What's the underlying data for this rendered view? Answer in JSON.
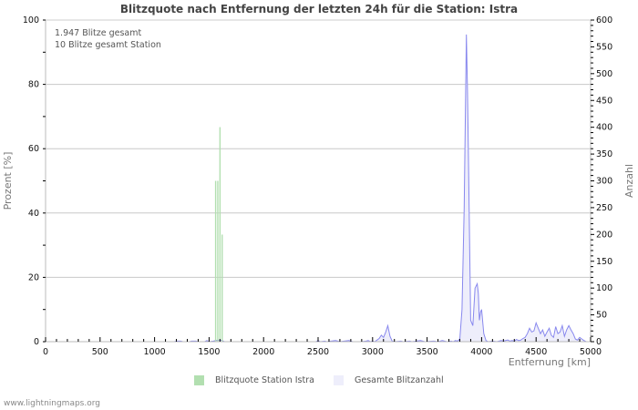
{
  "header": {
    "title": "Blitzquote nach Entfernung der letzten 24h für die Station: Istra"
  },
  "info": {
    "line1": "1.947 Blitze gesamt",
    "line2": "10 Blitze gesamt Station"
  },
  "legend": {
    "item1": "Blitzquote Station Istra",
    "item2": "Gesamte Blitzanzahl"
  },
  "footer": {
    "text": "www.lightningmaps.org"
  },
  "colors": {
    "station_bar": "#b2dfb0",
    "total_line": "#8888ee",
    "total_fill": "#eeeefb",
    "grid": "#c8c8c8"
  },
  "chart_data": {
    "type": "bar+area",
    "title": "Blitzquote nach Entfernung der letzten 24h für die Station: Istra",
    "xlabel": "Entfernung   [km]",
    "ylabel_left": "Prozent   [%]",
    "ylabel_right": "Anzahl",
    "xlim": [
      0,
      5000
    ],
    "ylim_left": [
      0,
      100
    ],
    "ylim_right": [
      0,
      600
    ],
    "x_ticks": [
      0,
      500,
      1000,
      1500,
      2000,
      2500,
      3000,
      3500,
      4000,
      4500,
      5000
    ],
    "y_left_ticks": [
      0,
      20,
      40,
      60,
      80,
      100
    ],
    "y_right_ticks": [
      0,
      50,
      100,
      150,
      200,
      250,
      300,
      350,
      400,
      450,
      500,
      550,
      600
    ],
    "grid": true,
    "legend_position": "bottom",
    "series": [
      {
        "name": "Blitzquote Station Istra",
        "axis": "left",
        "type": "bar",
        "bin_width_km": 20,
        "points": [
          [
            1560,
            50
          ],
          [
            1580,
            50
          ],
          [
            1600,
            66.7
          ],
          [
            1620,
            33.3
          ]
        ]
      },
      {
        "name": "Gesamte Blitzanzahl",
        "axis": "right",
        "type": "area",
        "points": [
          [
            0,
            0
          ],
          [
            1180,
            0
          ],
          [
            1200,
            1
          ],
          [
            1240,
            1
          ],
          [
            1260,
            0
          ],
          [
            1320,
            0
          ],
          [
            1340,
            1
          ],
          [
            1380,
            1
          ],
          [
            1400,
            0
          ],
          [
            1460,
            0
          ],
          [
            1480,
            2
          ],
          [
            1500,
            0
          ],
          [
            1540,
            1
          ],
          [
            1560,
            2
          ],
          [
            1600,
            3
          ],
          [
            1620,
            2
          ],
          [
            1640,
            0
          ],
          [
            2480,
            0
          ],
          [
            2500,
            2
          ],
          [
            2520,
            0
          ],
          [
            2560,
            1
          ],
          [
            2580,
            0
          ],
          [
            2620,
            1
          ],
          [
            2660,
            2
          ],
          [
            2680,
            1
          ],
          [
            2700,
            0
          ],
          [
            2740,
            1
          ],
          [
            2780,
            2
          ],
          [
            2800,
            1
          ],
          [
            2820,
            0
          ],
          [
            2900,
            0
          ],
          [
            2940,
            1
          ],
          [
            2960,
            2
          ],
          [
            2980,
            0
          ],
          [
            3000,
            1
          ],
          [
            3020,
            0
          ],
          [
            3060,
            6
          ],
          [
            3080,
            12
          ],
          [
            3100,
            8
          ],
          [
            3120,
            18
          ],
          [
            3140,
            30
          ],
          [
            3160,
            10
          ],
          [
            3180,
            1
          ],
          [
            3200,
            0
          ],
          [
            3260,
            1
          ],
          [
            3280,
            0
          ],
          [
            3340,
            1
          ],
          [
            3360,
            0
          ],
          [
            3400,
            1
          ],
          [
            3440,
            2
          ],
          [
            3460,
            1
          ],
          [
            3480,
            0
          ],
          [
            3560,
            1
          ],
          [
            3600,
            0
          ],
          [
            3640,
            2
          ],
          [
            3660,
            1
          ],
          [
            3680,
            0
          ],
          [
            3720,
            1
          ],
          [
            3740,
            0
          ],
          [
            3760,
            2
          ],
          [
            3780,
            1
          ],
          [
            3800,
            5
          ],
          [
            3820,
            60
          ],
          [
            3840,
            250
          ],
          [
            3860,
            573
          ],
          [
            3870,
            470
          ],
          [
            3880,
            340
          ],
          [
            3900,
            40
          ],
          [
            3920,
            30
          ],
          [
            3940,
            100
          ],
          [
            3960,
            108
          ],
          [
            3970,
            90
          ],
          [
            3980,
            40
          ],
          [
            3990,
            55
          ],
          [
            4000,
            60
          ],
          [
            4020,
            15
          ],
          [
            4040,
            2
          ],
          [
            4060,
            0
          ],
          [
            4100,
            1
          ],
          [
            4140,
            0
          ],
          [
            4180,
            2
          ],
          [
            4200,
            1
          ],
          [
            4240,
            3
          ],
          [
            4260,
            1
          ],
          [
            4280,
            2
          ],
          [
            4300,
            1
          ],
          [
            4320,
            4
          ],
          [
            4340,
            2
          ],
          [
            4360,
            3
          ],
          [
            4380,
            6
          ],
          [
            4400,
            8
          ],
          [
            4420,
            15
          ],
          [
            4440,
            25
          ],
          [
            4460,
            18
          ],
          [
            4480,
            20
          ],
          [
            4500,
            35
          ],
          [
            4520,
            25
          ],
          [
            4540,
            15
          ],
          [
            4560,
            22
          ],
          [
            4580,
            10
          ],
          [
            4600,
            18
          ],
          [
            4620,
            25
          ],
          [
            4640,
            12
          ],
          [
            4660,
            8
          ],
          [
            4680,
            28
          ],
          [
            4700,
            15
          ],
          [
            4720,
            18
          ],
          [
            4740,
            30
          ],
          [
            4760,
            10
          ],
          [
            4780,
            22
          ],
          [
            4800,
            30
          ],
          [
            4820,
            22
          ],
          [
            4840,
            15
          ],
          [
            4860,
            5
          ],
          [
            4880,
            3
          ],
          [
            4900,
            8
          ],
          [
            4920,
            5
          ],
          [
            4940,
            2
          ],
          [
            4960,
            0
          ],
          [
            5000,
            0
          ]
        ]
      }
    ]
  }
}
